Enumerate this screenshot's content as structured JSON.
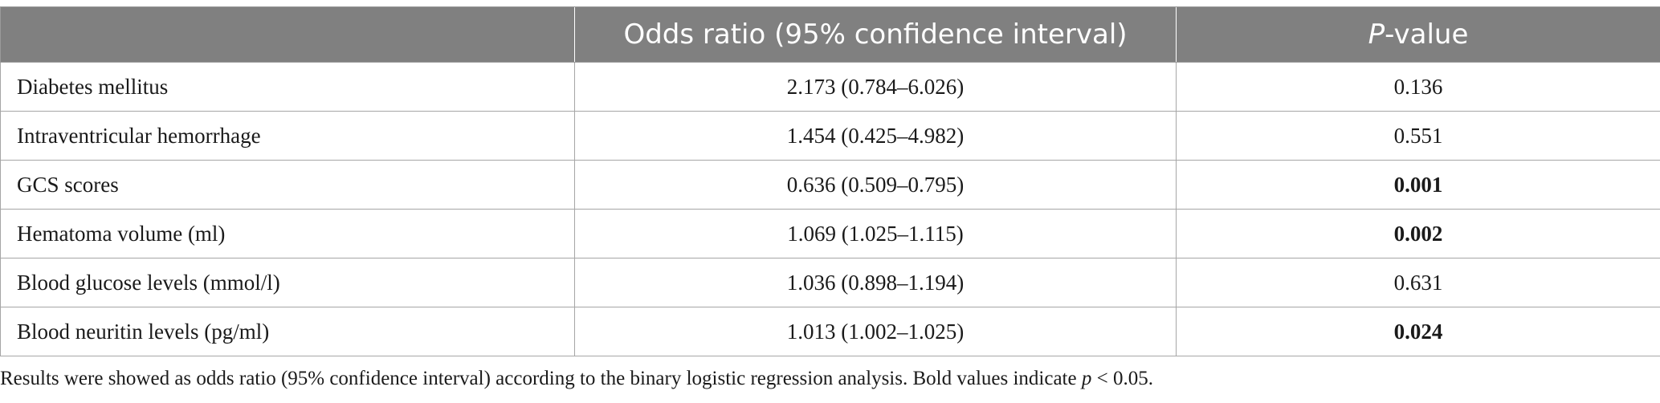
{
  "table": {
    "headers": [
      "",
      "Odds ratio (95% confidence interval)",
      "P-value"
    ],
    "header_pvalue_italic": "P",
    "header_pvalue_rest": "-value",
    "rows": [
      {
        "variable": "Diabetes mellitus",
        "or_ci": "2.173 (0.784–6.026)",
        "p": "0.136",
        "significant": false
      },
      {
        "variable": "Intraventricular hemorrhage",
        "or_ci": "1.454 (0.425–4.982)",
        "p": "0.551",
        "significant": false
      },
      {
        "variable": "GCS scores",
        "or_ci": "0.636 (0.509–0.795)",
        "p": "0.001",
        "significant": true
      },
      {
        "variable": "Hematoma volume (ml)",
        "or_ci": "1.069 (1.025–1.115)",
        "p": "0.002",
        "significant": true
      },
      {
        "variable": "Blood glucose levels (mmol/l)",
        "or_ci": "1.036 (0.898–1.194)",
        "p": "0.631",
        "significant": false
      },
      {
        "variable": "Blood neuritin levels (pg/ml)",
        "or_ci": "1.013 (1.002–1.025)",
        "p": "0.024",
        "significant": true
      }
    ]
  },
  "footnote": {
    "text_before": "Results were showed as odds ratio (95% confidence interval) according to the binary logistic regression analysis. Bold values indicate ",
    "italic_p": "p",
    "text_after": " < 0.05."
  },
  "colors": {
    "header_bg": "#808080",
    "header_text": "#ffffff",
    "grid": "#a6a6a6"
  }
}
